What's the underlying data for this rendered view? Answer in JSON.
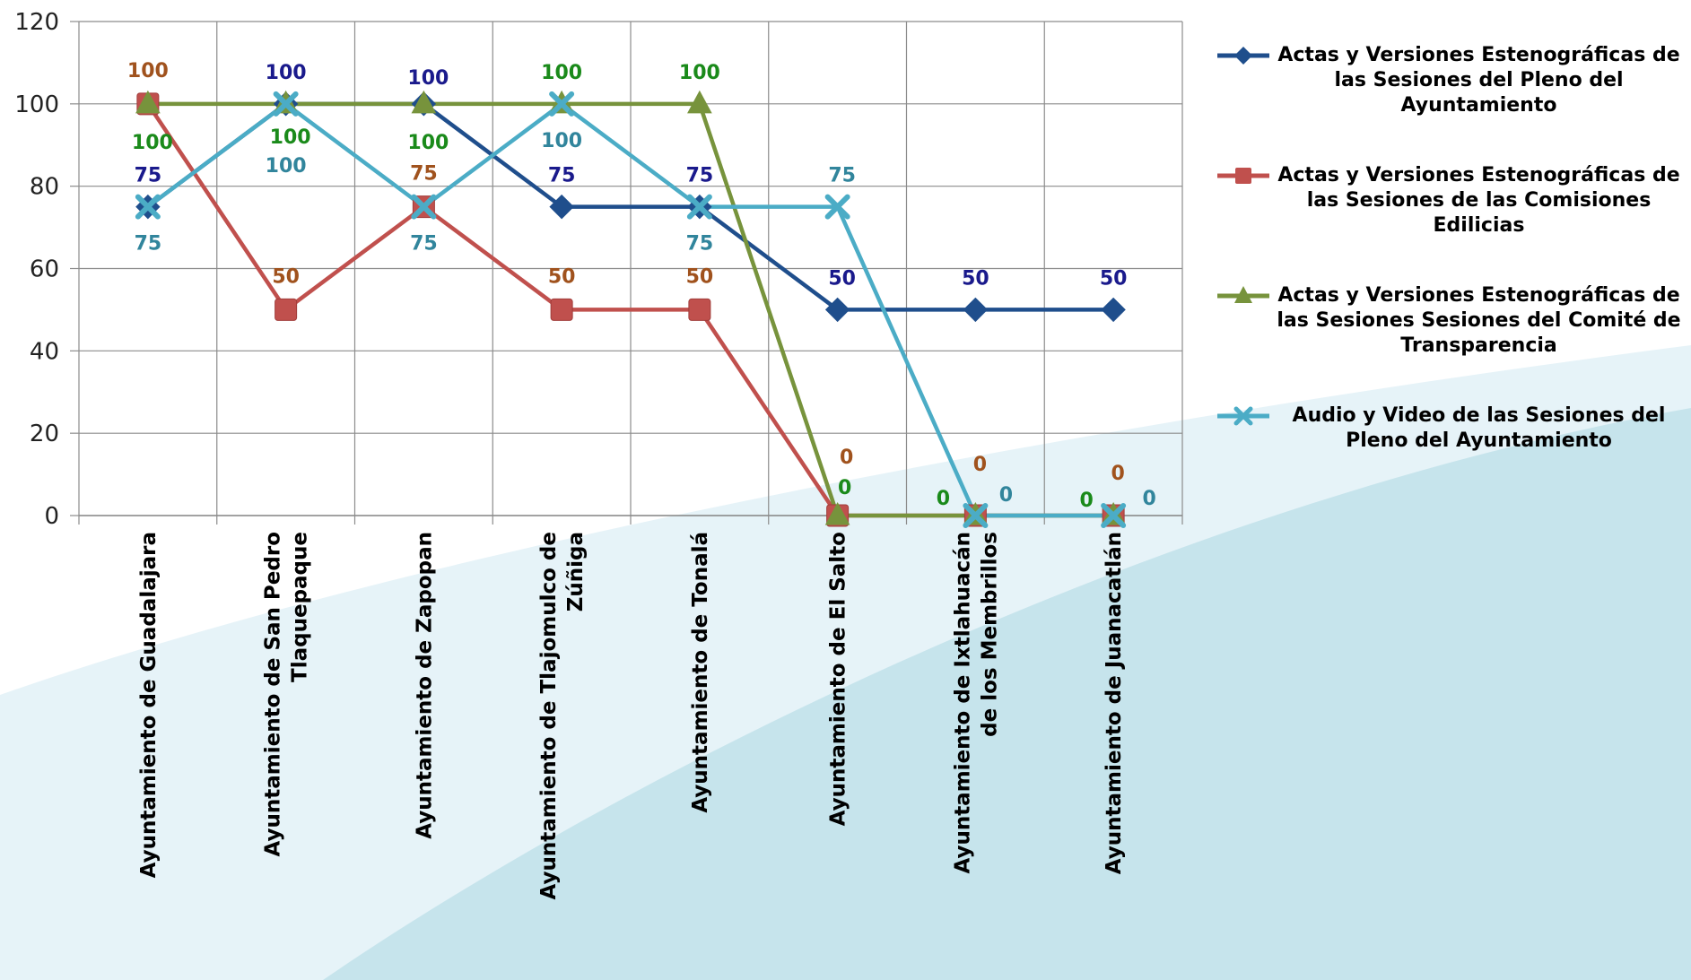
{
  "chart_data": {
    "type": "line",
    "categories": [
      "Ayuntamiento de Guadalajara",
      "Ayuntamiento de San Pedro Tlaquepaque",
      "Ayuntamiento de Zapopan",
      "Ayuntamiento de Tlajomulco de Zúñiga",
      "Ayuntamiento de Tonalá",
      "Ayuntamiento de El Salto",
      "Ayuntamiento de Ixtlahuacán de los Membrillos",
      "Ayuntamiento de Juanacatlán"
    ],
    "category_lines": [
      [
        "Ayuntamiento de Guadalajara"
      ],
      [
        "Ayuntamiento de San Pedro",
        "Tlaquepaque"
      ],
      [
        "Ayuntamiento de Zapopan"
      ],
      [
        "Ayuntamiento de Tlajomulco de",
        "Zúñiga"
      ],
      [
        "Ayuntamiento de Tonalá"
      ],
      [
        "Ayuntamiento de El Salto"
      ],
      [
        "Ayuntamiento de Ixtlahuacán",
        "de los Membrillos"
      ],
      [
        "Ayuntamiento de Juanacatlán"
      ]
    ],
    "ylim": [
      0,
      120
    ],
    "yticks": [
      0,
      20,
      40,
      60,
      80,
      100,
      120
    ],
    "grid": true,
    "legend_position": "right",
    "series": [
      {
        "name": "Actas y Versiones Estenográficas de las Sesiones del Pleno del Ayuntamiento",
        "legend_lines": [
          "Actas y Versiones Estenográficas de",
          "las Sesiones del Pleno del",
          "Ayuntamiento"
        ],
        "values": [
          75,
          100,
          100,
          75,
          75,
          50,
          50,
          50
        ],
        "labels": [
          "75",
          "100",
          "100",
          "75",
          "75",
          "50",
          "50",
          "50"
        ],
        "color": "#1f4e8c",
        "label_color": "#1a1a8c",
        "marker": "diamond"
      },
      {
        "name": "Actas y Versiones Estenográficas de las Sesiones de las Comisiones Edilicias",
        "legend_lines": [
          "Actas y Versiones Estenográficas de",
          "las Sesiones de las Comisiones",
          "Edilicias"
        ],
        "values": [
          100,
          50,
          75,
          50,
          50,
          0,
          0,
          0
        ],
        "labels": [
          "100",
          "50",
          "75",
          "50",
          "50",
          "0",
          "0",
          "0"
        ],
        "color": "#c0504d",
        "label_color": "#a0521d",
        "marker": "square"
      },
      {
        "name": "Actas y Versiones Estenográficas de las Sesiones Sesiones del Comité de Transparencia",
        "legend_lines": [
          "Actas y Versiones Estenográficas de",
          "las Sesiones Sesiones del Comité de",
          "Transparencia"
        ],
        "values": [
          100,
          100,
          100,
          100,
          100,
          0,
          0,
          0
        ],
        "labels": [
          "100",
          "100",
          "100",
          "100",
          "100",
          "0",
          "0",
          "0"
        ],
        "color": "#77933c",
        "label_color": "#1a8a1a",
        "marker": "triangle"
      },
      {
        "name": "Audio y Video de las Sesiones del Pleno del Ayuntamiento",
        "legend_lines": [
          "Audio y Video de las Sesiones del",
          "Pleno del Ayuntamiento"
        ],
        "values": [
          75,
          100,
          75,
          100,
          75,
          75,
          0,
          0
        ],
        "labels": [
          "75",
          "100",
          "75",
          "100",
          "75",
          "75",
          "0",
          "0"
        ],
        "color": "#4bacc6",
        "label_color": "#31859c",
        "marker": "x"
      }
    ]
  }
}
